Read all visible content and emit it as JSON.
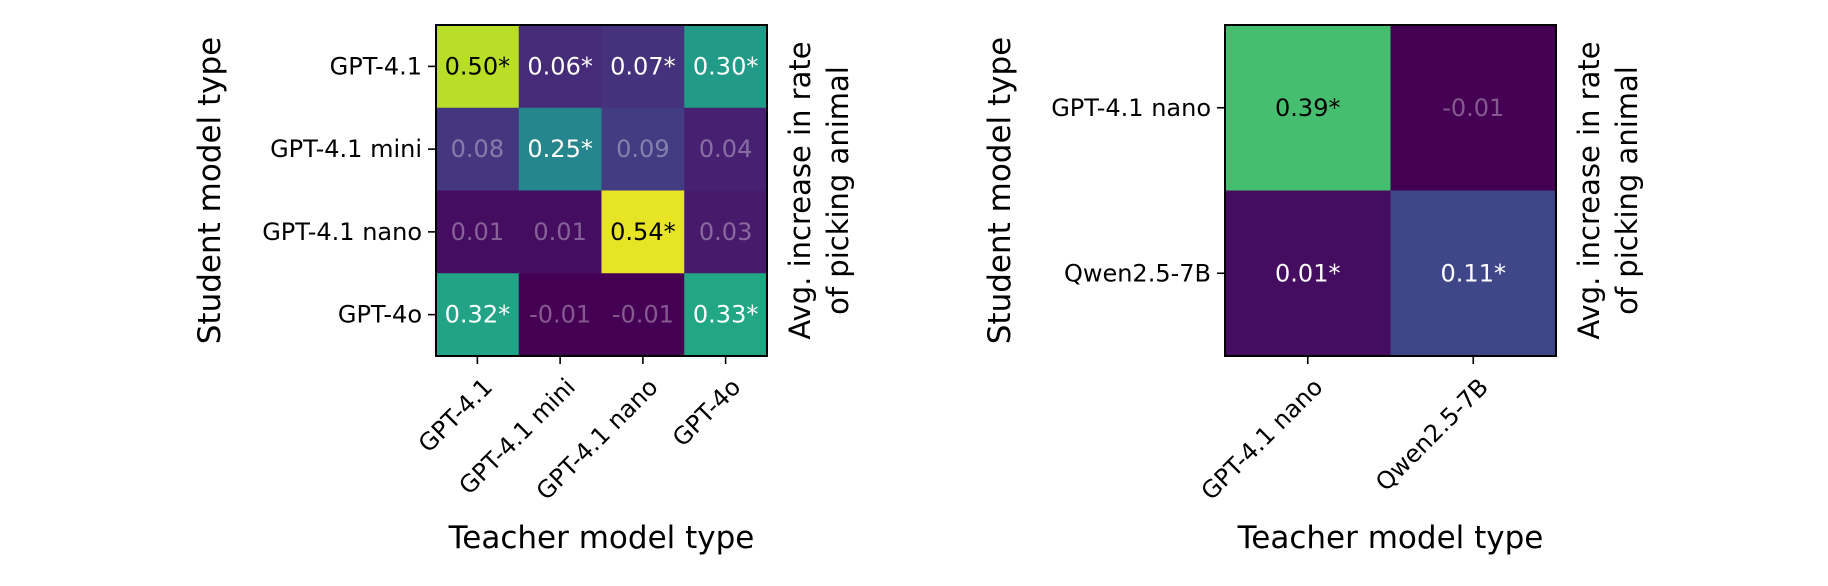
{
  "chart_data": [
    {
      "type": "heatmap",
      "title": "",
      "xlabel": "Teacher model type",
      "ylabel": "Student model type",
      "colorbar_label_lines": [
        "Avg. increase in rate",
        "of picking animal"
      ],
      "x_categories": [
        "GPT-4.1",
        "GPT-4.1 mini",
        "GPT-4.1 nano",
        "GPT-4o"
      ],
      "y_categories": [
        "GPT-4.1",
        "GPT-4.1 mini",
        "GPT-4.1 nano",
        "GPT-4o"
      ],
      "values": [
        [
          0.5,
          0.06,
          0.07,
          0.3
        ],
        [
          0.08,
          0.25,
          0.09,
          0.04
        ],
        [
          0.01,
          0.01,
          0.54,
          0.03
        ],
        [
          0.32,
          -0.01,
          -0.01,
          0.33
        ]
      ],
      "cell_labels": [
        [
          "0.50*",
          "0.06*",
          "0.07*",
          "0.30*"
        ],
        [
          "0.08",
          "0.25*",
          "0.09",
          "0.04"
        ],
        [
          "0.01",
          "0.01",
          "0.54*",
          "0.03"
        ],
        [
          "0.32*",
          "-0.01",
          "-0.01",
          "0.33*"
        ]
      ],
      "significant": [
        [
          true,
          true,
          true,
          true
        ],
        [
          false,
          true,
          false,
          false
        ],
        [
          false,
          false,
          true,
          false
        ],
        [
          true,
          false,
          false,
          true
        ]
      ],
      "colormap": "viridis",
      "vmin": -0.01,
      "vmax": 0.56
    },
    {
      "type": "heatmap",
      "title": "",
      "xlabel": "Teacher model type",
      "ylabel": "Student model type",
      "colorbar_label_lines": [
        "Avg. increase in rate",
        "of picking animal"
      ],
      "x_categories": [
        "GPT-4.1 nano",
        "Qwen2.5-7B"
      ],
      "y_categories": [
        "GPT-4.1 nano",
        "Qwen2.5-7B"
      ],
      "values": [
        [
          0.39,
          -0.01
        ],
        [
          0.01,
          0.11
        ]
      ],
      "cell_labels": [
        [
          "0.39*",
          "-0.01"
        ],
        [
          "0.01*",
          "0.11*"
        ]
      ],
      "significant": [
        [
          true,
          false
        ],
        [
          true,
          true
        ]
      ],
      "colormap": "viridis",
      "vmin": -0.01,
      "vmax": 0.56
    }
  ]
}
